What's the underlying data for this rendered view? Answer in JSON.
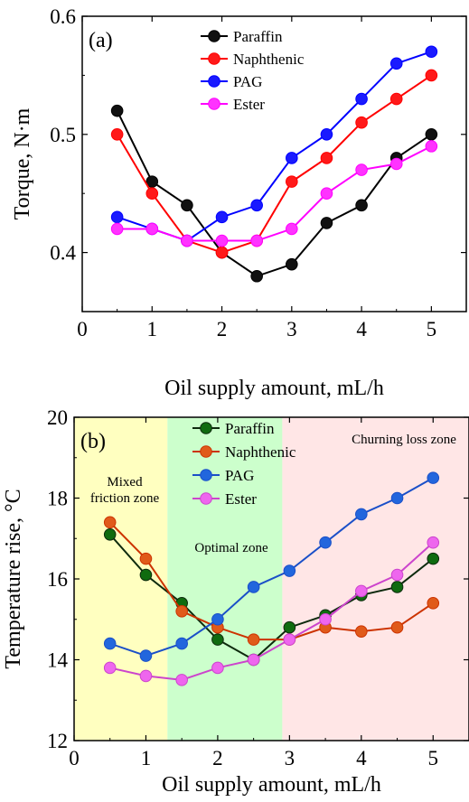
{
  "chart_data": [
    {
      "panel": "(a)",
      "type": "line",
      "xlabel": "Oil supply amount, mL/h",
      "ylabel": "Torque, N·m",
      "xlim": [
        0,
        5.5
      ],
      "ylim": [
        0.35,
        0.6
      ],
      "xticks": [
        "0",
        "1",
        "2",
        "3",
        "4",
        "5"
      ],
      "yticks": [
        "0.4",
        "0.5",
        "0.6"
      ],
      "legend": "top-left",
      "x": [
        0.5,
        1,
        1.5,
        2,
        2.5,
        3,
        3.5,
        4,
        4.5,
        5
      ],
      "series": [
        {
          "name": "Paraffin",
          "color": "#000000",
          "fill": "#111111",
          "values": [
            0.52,
            0.46,
            0.44,
            0.4,
            0.38,
            0.39,
            0.425,
            0.44,
            0.48,
            0.5
          ]
        },
        {
          "name": "Naphthenic",
          "color": "#ff0000",
          "fill": "#ff1a1a",
          "values": [
            0.5,
            0.45,
            0.41,
            0.4,
            0.41,
            0.46,
            0.48,
            0.51,
            0.53,
            0.55
          ]
        },
        {
          "name": "PAG",
          "color": "#0000ff",
          "fill": "#1a1aff",
          "values": [
            0.43,
            0.42,
            0.41,
            0.43,
            0.44,
            0.48,
            0.5,
            0.53,
            0.56,
            0.57
          ]
        },
        {
          "name": "Ester",
          "color": "#ff00ff",
          "fill": "#ff33ff",
          "values": [
            0.42,
            0.42,
            0.41,
            0.41,
            0.41,
            0.42,
            0.45,
            0.47,
            0.475,
            0.49
          ]
        }
      ]
    },
    {
      "panel": "(b)",
      "type": "line",
      "xlabel": "Oil supply amount, mL/h",
      "ylabel": "Temperature rise, °C",
      "xlim": [
        0,
        5.5
      ],
      "ylim": [
        12,
        20
      ],
      "xticks": [
        "0",
        "1",
        "2",
        "3",
        "4",
        "5"
      ],
      "yticks": [
        "12",
        "14",
        "16",
        "18",
        "20"
      ],
      "legend": "top-center",
      "zones": [
        {
          "label_lines": [
            "Mixed",
            "friction zone"
          ],
          "x_range": [
            0,
            1.3
          ],
          "color": "#ffffc0"
        },
        {
          "label_lines": [
            "Optimal zone"
          ],
          "x_range": [
            1.3,
            2.9
          ],
          "color": "#ccffcc"
        },
        {
          "label_lines": [
            "Churning loss zone"
          ],
          "x_range": [
            2.9,
            5.5
          ],
          "color": "#ffe6e6"
        }
      ],
      "x": [
        0.5,
        1,
        1.5,
        2,
        2.5,
        3,
        3.5,
        4,
        4.5,
        5
      ],
      "series": [
        {
          "name": "Paraffin",
          "color": "#0d2a0d",
          "fill": "#0f6b0f",
          "values": [
            17.1,
            16.1,
            15.4,
            14.5,
            14.0,
            14.8,
            15.1,
            15.6,
            15.8,
            16.5
          ]
        },
        {
          "name": "Naphthenic",
          "color": "#cc3300",
          "fill": "#e05a1a",
          "values": [
            17.4,
            16.5,
            15.2,
            14.8,
            14.5,
            14.5,
            14.8,
            14.7,
            14.8,
            15.4
          ]
        },
        {
          "name": "PAG",
          "color": "#1a4fc8",
          "fill": "#2266dd",
          "values": [
            14.4,
            14.1,
            14.4,
            15.0,
            15.8,
            16.2,
            16.9,
            17.6,
            18.0,
            18.5
          ]
        },
        {
          "name": "Ester",
          "color": "#cc44cc",
          "fill": "#ee66ee",
          "values": [
            13.8,
            13.6,
            13.5,
            13.8,
            14.0,
            14.5,
            15.0,
            15.7,
            16.1,
            16.9
          ]
        }
      ]
    }
  ]
}
